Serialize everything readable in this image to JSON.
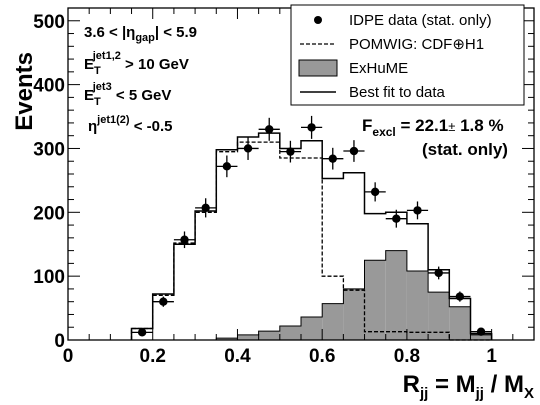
{
  "chart_data": {
    "type": "histogram",
    "xlabel": "R_jj = M_jj / M_X",
    "ylabel": "Events",
    "xlim": [
      0,
      1.1
    ],
    "ylim": [
      0,
      520
    ],
    "x_ticks": [
      "0",
      "0.2",
      "0.4",
      "0.6",
      "0.8",
      "1"
    ],
    "x_tick_values": [
      0,
      0.2,
      0.4,
      0.6,
      0.8,
      1.0
    ],
    "y_ticks": [
      "0",
      "100",
      "200",
      "300",
      "400",
      "500"
    ],
    "y_tick_values": [
      0,
      100,
      200,
      300,
      400,
      500
    ],
    "bin_edges": [
      0.15,
      0.2,
      0.25,
      0.3,
      0.35,
      0.4,
      0.45,
      0.5,
      0.55,
      0.6,
      0.65,
      0.7,
      0.75,
      0.8,
      0.85,
      0.9,
      0.95,
      1.0
    ],
    "series": [
      {
        "name": "IDPE data (stat. only)",
        "kind": "points",
        "x": [
          0.175,
          0.225,
          0.275,
          0.325,
          0.375,
          0.425,
          0.475,
          0.525,
          0.575,
          0.625,
          0.675,
          0.725,
          0.775,
          0.825,
          0.875,
          0.925,
          0.975
        ],
        "values": [
          12,
          60,
          157,
          207,
          272,
          300,
          330,
          295,
          333,
          284,
          296,
          232,
          190,
          203,
          105,
          68,
          13
        ],
        "errors": [
          4,
          8,
          13,
          15,
          17,
          18,
          18,
          17,
          18,
          17,
          17,
          15,
          14,
          14,
          10,
          8,
          4
        ]
      },
      {
        "name": "POMWIG: CDF⊕H1",
        "kind": "step-dashed",
        "values": [
          18,
          70,
          152,
          200,
          295,
          310,
          310,
          285,
          285,
          100,
          78,
          13,
          13,
          12,
          12,
          0,
          0
        ]
      },
      {
        "name": "ExHuME",
        "kind": "filled",
        "values": [
          0,
          0,
          0,
          0,
          3,
          8,
          14,
          22,
          36,
          57,
          80,
          125,
          140,
          108,
          75,
          52,
          8
        ]
      },
      {
        "name": "Best fit to data",
        "kind": "step-solid",
        "values": [
          18,
          72,
          150,
          202,
          298,
          318,
          324,
          300,
          312,
          253,
          262,
          198,
          200,
          182,
          110,
          65,
          10
        ]
      }
    ],
    "legend_position": "top-right",
    "colors": {
      "exhume_fill": "#999999",
      "line": "#000000"
    },
    "annotations": {
      "cuts": [
        {
          "main": "3.6 < |η",
          "sub": "gap",
          "tail": "| < 5.9"
        },
        {
          "main": "E",
          "sub": "T",
          "sup": "jet1,2",
          "tail": " > 10 GeV"
        },
        {
          "main": "E",
          "sub": "T",
          "sup": "jet3",
          "tail": " < 5 GeV"
        },
        {
          "main": "η",
          "sup": "jet1(2)",
          "tail": " < -0.5"
        }
      ],
      "fexcl": {
        "main": "F",
        "sub": "excl",
        "value": " = 22.1",
        "pm": "±",
        "err": " 1.8 %"
      },
      "fexcl_note": "(stat. only)"
    },
    "axis_title_parts": {
      "x": {
        "main": "R",
        "sub": "jj",
        "mid": " = M",
        "sub2": "jj",
        "mid2": " / M",
        "sub3": "X"
      },
      "y": "Events"
    }
  }
}
